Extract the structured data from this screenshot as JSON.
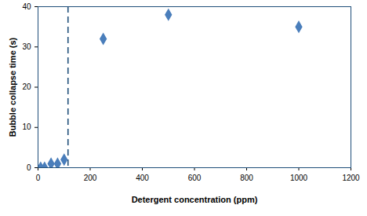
{
  "chart_data": {
    "type": "scatter",
    "x_label": "Detergent concentration (ppm)",
    "y_label": "Bubble collapse time (s)",
    "x": [
      10,
      25,
      50,
      75,
      100,
      250,
      500,
      1000
    ],
    "values": [
      0,
      0,
      1,
      1,
      2,
      32,
      38,
      35
    ],
    "color": "#4a7ebb",
    "marker": "diamond",
    "xlim": [
      0,
      1200
    ],
    "xticks": [
      0,
      200,
      400,
      600,
      800,
      1000,
      1200
    ],
    "ylim": [
      0,
      40
    ],
    "yticks": [
      0,
      10,
      20,
      30,
      40
    ],
    "grid": false,
    "vline": {
      "x": 115,
      "line_style": "dashed",
      "color": "#1f4e79"
    }
  }
}
